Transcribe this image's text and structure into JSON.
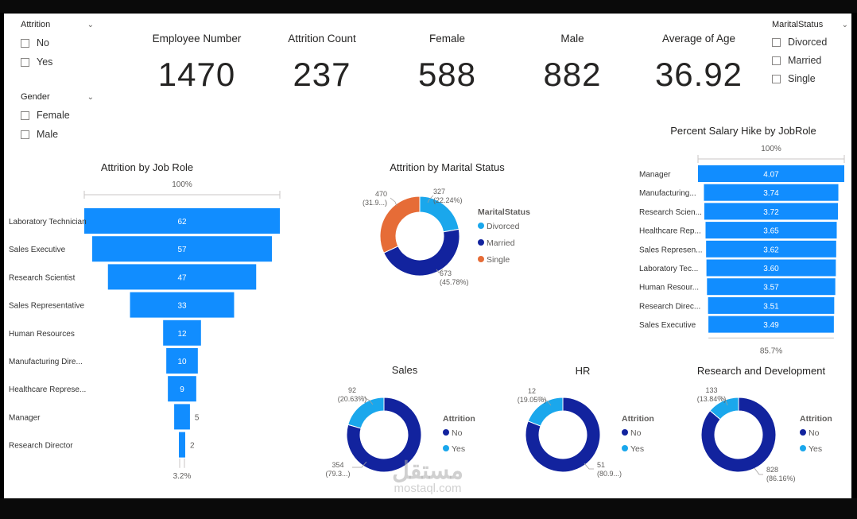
{
  "slicers": {
    "attrition": {
      "title": "Attrition",
      "items": [
        "No",
        "Yes"
      ]
    },
    "gender": {
      "title": "Gender",
      "items": [
        "Female",
        "Male"
      ]
    },
    "marital": {
      "title": "MaritalStatus",
      "items": [
        "Divorced",
        "Married",
        "Single"
      ]
    }
  },
  "cards": [
    {
      "label": "Employee Number",
      "value": "1470"
    },
    {
      "label": "Attrition Count",
      "value": "237"
    },
    {
      "label": "Female",
      "value": "588"
    },
    {
      "label": "Male",
      "value": "882"
    },
    {
      "label": "Average of Age",
      "value": "36.92"
    }
  ],
  "watermark": {
    "arabic": "مستقل",
    "latin": "mostaql.com"
  },
  "colors": {
    "blue": "#118DFF",
    "navy": "#12239E",
    "orange": "#E66C37",
    "light": "#1AA7EC"
  },
  "chart_data": [
    {
      "type": "bar",
      "subtype": "funnel",
      "title": "Attrition by Job Role",
      "top_label": "100%",
      "bottom_label": "3.2%",
      "categories": [
        "Laboratory Technician",
        "Sales Executive",
        "Research Scientist",
        "Sales Representative",
        "Human Resources",
        "Manufacturing Dire...",
        "Healthcare Represe...",
        "Manager",
        "Research Director"
      ],
      "values": [
        62,
        57,
        47,
        33,
        12,
        10,
        9,
        5,
        2
      ]
    },
    {
      "type": "pie",
      "subtype": "donut",
      "title": "Attrition by Marital Status",
      "legend_title": "MaritalStatus",
      "legend_position": "right",
      "slices": [
        {
          "name": "Divorced",
          "value": 327,
          "label": "327",
          "pct": "(22.24%)",
          "color": "#1AA7EC"
        },
        {
          "name": "Married",
          "value": 673,
          "label": "673",
          "pct": "(45.78%)",
          "color": "#12239E"
        },
        {
          "name": "Single",
          "value": 470,
          "label": "470",
          "pct": "(31.9...)",
          "color": "#E66C37"
        }
      ]
    },
    {
      "type": "bar",
      "subtype": "funnel",
      "title": "Percent Salary Hike by JobRole",
      "top_label": "100%",
      "bottom_label": "85.7%",
      "categories": [
        "Manager",
        "Manufacturing...",
        "Research Scien...",
        "Healthcare Rep...",
        "Sales Represen...",
        "Laboratory Tec...",
        "Human Resour...",
        "Research Direc...",
        "Sales Executive"
      ],
      "values": [
        4.07,
        3.74,
        3.72,
        3.65,
        3.62,
        3.6,
        3.57,
        3.51,
        3.49
      ],
      "value_labels": [
        "4.07",
        "3.74",
        "3.72",
        "3.65",
        "3.62",
        "3.60",
        "3.57",
        "3.51",
        "3.49"
      ]
    },
    {
      "type": "pie",
      "subtype": "donut",
      "title": "Sales",
      "legend_title": "Attrition",
      "slices": [
        {
          "name": "No",
          "value": 354,
          "label": "354",
          "pct": "(79.3...)",
          "color": "#12239E"
        },
        {
          "name": "Yes",
          "value": 92,
          "label": "92",
          "pct": "(20.63%)",
          "color": "#1AA7EC"
        }
      ]
    },
    {
      "type": "pie",
      "subtype": "donut",
      "title": "HR",
      "legend_title": "Attrition",
      "slices": [
        {
          "name": "No",
          "value": 51,
          "label": "51",
          "pct": "(80.9...)",
          "color": "#12239E"
        },
        {
          "name": "Yes",
          "value": 12,
          "label": "12",
          "pct": "(19.05%)",
          "color": "#1AA7EC"
        }
      ]
    },
    {
      "type": "pie",
      "subtype": "donut",
      "title": "Research and Development",
      "legend_title": "Attrition",
      "slices": [
        {
          "name": "No",
          "value": 828,
          "label": "828",
          "pct": "(86.16%)",
          "color": "#12239E"
        },
        {
          "name": "Yes",
          "value": 133,
          "label": "133",
          "pct": "(13.84%)",
          "color": "#1AA7EC"
        }
      ]
    }
  ]
}
